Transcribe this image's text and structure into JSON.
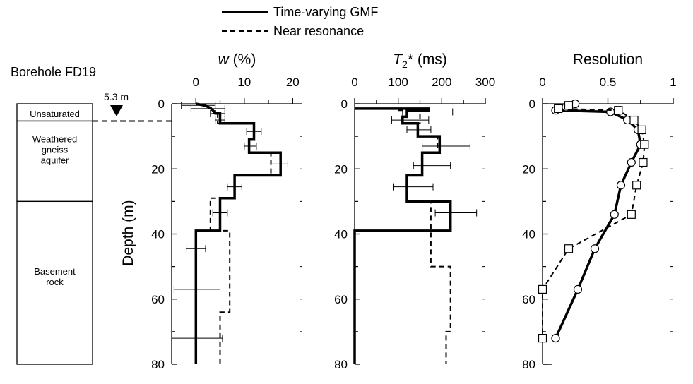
{
  "borehole": {
    "label": "Borehole FD19",
    "water_table_label": "5.3 m",
    "water_table_depth": 5.3,
    "layers": [
      {
        "label_lines": [
          "Unsaturated"
        ],
        "top": 0,
        "bottom": 5.3
      },
      {
        "label_lines": [
          "Weathered",
          "gneiss",
          "aquifer"
        ],
        "top": 5.3,
        "bottom": 30
      },
      {
        "label_lines": [
          "Basement",
          "rock"
        ],
        "top": 30,
        "bottom": 80
      }
    ]
  },
  "legend": [
    {
      "label": "Time-varying GMF",
      "style": "solid"
    },
    {
      "label": "Near resonance",
      "style": "dashed"
    }
  ],
  "chart_data": [
    {
      "type": "line",
      "title": "w (%)",
      "title_parts": {
        "symbol": "w",
        "rest": " (%)"
      },
      "ylabel": "Depth (m)",
      "xlim": [
        -5,
        22
      ],
      "ylim": [
        0,
        80
      ],
      "xticks": [
        0,
        10,
        20
      ],
      "yticks": [
        0,
        20,
        40,
        60,
        80
      ],
      "series": [
        {
          "name": "Time-varying GMF",
          "style": "solid",
          "points": [
            [
              0,
              0
            ],
            [
              2,
              0.6
            ],
            [
              3,
              1.3
            ],
            [
              3.5,
              2
            ],
            [
              4,
              3
            ],
            [
              5,
              3
            ],
            [
              5,
              6
            ],
            [
              12,
              6
            ],
            [
              12,
              11
            ],
            [
              11,
              11
            ],
            [
              11,
              15
            ],
            [
              17.5,
              15
            ],
            [
              17.5,
              22
            ],
            [
              8,
              22
            ],
            [
              8,
              29
            ],
            [
              5,
              29
            ],
            [
              5,
              39
            ],
            [
              0,
              39
            ],
            [
              0,
              80
            ]
          ]
        },
        {
          "name": "Near resonance",
          "style": "dashed",
          "points": [
            [
              0,
              0
            ],
            [
              2,
              0.8
            ],
            [
              3,
              1.5
            ],
            [
              3.5,
              2.2
            ],
            [
              4.5,
              2.2
            ],
            [
              4.5,
              6
            ],
            [
              12,
              6
            ],
            [
              12,
              11
            ],
            [
              11,
              11
            ],
            [
              11,
              15
            ],
            [
              15.5,
              15
            ],
            [
              15.5,
              22
            ],
            [
              8,
              22
            ],
            [
              8,
              29
            ],
            [
              3,
              29
            ],
            [
              3,
              39
            ],
            [
              7,
              39
            ],
            [
              7,
              64
            ],
            [
              5,
              64
            ],
            [
              5,
              80
            ]
          ]
        }
      ],
      "error_bars": [
        {
          "depth": 0.5,
          "low": -3,
          "high": 4
        },
        {
          "depth": 1.5,
          "low": -1,
          "high": 6
        },
        {
          "depth": 3,
          "low": 3,
          "high": 6
        },
        {
          "depth": 5,
          "low": 4,
          "high": 6
        },
        {
          "depth": 8.5,
          "low": 10.5,
          "high": 13.5
        },
        {
          "depth": 13,
          "low": 10,
          "high": 12.5
        },
        {
          "depth": 18.5,
          "low": 15.5,
          "high": 19
        },
        {
          "depth": 25.5,
          "low": 6.5,
          "high": 9.5
        },
        {
          "depth": 33.5,
          "low": 3.5,
          "high": 6.5
        },
        {
          "depth": 44.5,
          "low": -2,
          "high": 2
        },
        {
          "depth": 57,
          "low": -4.5,
          "high": 5
        },
        {
          "depth": 72,
          "low": -5,
          "high": 5.5
        }
      ]
    },
    {
      "type": "line",
      "title": "T2* (ms)",
      "title_parts": {
        "symbol": "T",
        "sub": "2",
        "rest": "* (ms)"
      },
      "xlim": [
        0,
        300
      ],
      "ylim": [
        0,
        80
      ],
      "xticks": [
        0,
        100,
        200,
        300
      ],
      "yticks": [
        0,
        20,
        40,
        60,
        80
      ],
      "series": [
        {
          "name": "Time-varying GMF",
          "style": "solid",
          "points": [
            [
              0,
              1.5
            ],
            [
              170,
              1.5
            ],
            [
              170,
              2
            ],
            [
              120,
              2
            ],
            [
              120,
              4
            ],
            [
              110,
              4
            ],
            [
              110,
              6
            ],
            [
              145,
              6
            ],
            [
              145,
              10
            ],
            [
              195,
              10
            ],
            [
              195,
              15
            ],
            [
              155,
              15
            ],
            [
              155,
              22
            ],
            [
              120,
              22
            ],
            [
              120,
              30
            ],
            [
              220,
              30
            ],
            [
              220,
              39
            ],
            [
              0,
              39
            ],
            [
              0,
              80
            ]
          ]
        },
        {
          "name": "Near resonance",
          "style": "dashed",
          "points": [
            [
              100,
              2
            ],
            [
              150,
              2
            ],
            [
              150,
              6
            ],
            [
              145,
              6
            ],
            [
              145,
              10
            ],
            [
              190,
              10
            ],
            [
              190,
              15
            ],
            [
              155,
              15
            ],
            [
              155,
              22
            ],
            [
              120,
              22
            ],
            [
              120,
              30
            ],
            [
              175,
              30
            ],
            [
              175,
              50
            ],
            [
              220,
              50
            ],
            [
              220,
              70
            ],
            [
              210,
              70
            ],
            [
              210,
              80
            ]
          ]
        }
      ],
      "error_bars": [
        {
          "depth": 2.5,
          "low": 110,
          "high": 225
        },
        {
          "depth": 5,
          "low": 85,
          "high": 170
        },
        {
          "depth": 8,
          "low": 120,
          "high": 175
        },
        {
          "depth": 13,
          "low": 155,
          "high": 265
        },
        {
          "depth": 19,
          "low": 135,
          "high": 220
        },
        {
          "depth": 25.5,
          "low": 90,
          "high": 180
        },
        {
          "depth": 33.5,
          "low": 185,
          "high": 280
        }
      ]
    },
    {
      "type": "line",
      "title": "Resolution",
      "xlim": [
        0,
        1
      ],
      "ylim": [
        0,
        80
      ],
      "xticks": [
        0,
        0.5,
        1
      ],
      "xtick_labels": [
        "0",
        "0.5",
        "1"
      ],
      "yticks": [
        0,
        20,
        40,
        60,
        80
      ],
      "series": [
        {
          "name": "Time-varying GMF",
          "style": "solid",
          "marker": "circle",
          "points": [
            [
              0.25,
              0
            ],
            [
              0.18,
              1
            ],
            [
              0.1,
              2
            ],
            [
              0.52,
              2.5
            ],
            [
              0.65,
              5
            ],
            [
              0.73,
              8
            ],
            [
              0.75,
              12.5
            ],
            [
              0.68,
              18
            ],
            [
              0.6,
              25
            ],
            [
              0.55,
              34
            ],
            [
              0.4,
              44.5
            ],
            [
              0.27,
              57
            ],
            [
              0.1,
              72
            ]
          ]
        },
        {
          "name": "Near resonance",
          "style": "dashed",
          "marker": "square",
          "points": [
            [
              0.2,
              0.5
            ],
            [
              0.12,
              1.5
            ],
            [
              0.58,
              2
            ],
            [
              0.7,
              5
            ],
            [
              0.76,
              8
            ],
            [
              0.78,
              12.5
            ],
            [
              0.77,
              18
            ],
            [
              0.72,
              25
            ],
            [
              0.68,
              34
            ],
            [
              0.2,
              44.5
            ],
            [
              0,
              57
            ],
            [
              0,
              72
            ]
          ]
        }
      ]
    }
  ]
}
